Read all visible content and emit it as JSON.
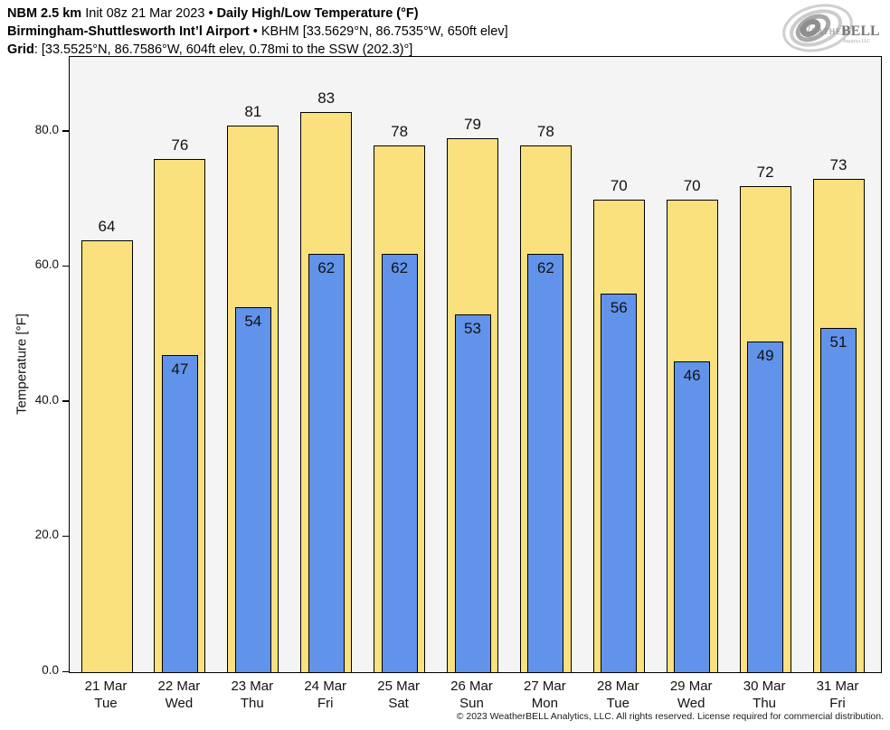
{
  "header": {
    "line1": {
      "bold1": "NBM 2.5 km",
      "regular1": " Init 08z 21 Mar 2023 • ",
      "bold2": "Daily High/Low Temperature (°F)"
    },
    "line2": {
      "bold": "Birmingham-Shuttlesworth Int’l Airport",
      "regular": " • KBHM [33.5629°N, 86.7535°W, 650ft elev]"
    },
    "line3": {
      "bold": "Grid",
      "regular": ": [33.5525°N, 86.7586°W, 604ft elev, 0.78mi to the SSW (202.3)°]"
    }
  },
  "logo": {
    "brand_weather": "Weather",
    "brand_bell": "BELL",
    "subtitle": "Analytics LLC"
  },
  "chart_data": {
    "type": "bar",
    "title": "Daily High/Low Temperature (°F)",
    "ylabel": "Temperature [°F]",
    "ylim": [
      0,
      91.1
    ],
    "grid": false,
    "legend": "none",
    "yticks": [
      {
        "value": 0,
        "label": "0.0"
      },
      {
        "value": 20,
        "label": "20.0"
      },
      {
        "value": 40,
        "label": "40.0"
      },
      {
        "value": 60,
        "label": "60.0"
      },
      {
        "value": 80,
        "label": "80.0"
      }
    ],
    "series": [
      {
        "name": "Daily High",
        "color": "#FBE07E"
      },
      {
        "name": "Daily Low",
        "color": "#6193EA"
      }
    ],
    "days": [
      {
        "date": "21 Mar",
        "dow": "Tue",
        "high": 64,
        "low": null
      },
      {
        "date": "22 Mar",
        "dow": "Wed",
        "high": 76,
        "low": 47
      },
      {
        "date": "23 Mar",
        "dow": "Thu",
        "high": 81,
        "low": 54
      },
      {
        "date": "24 Mar",
        "dow": "Fri",
        "high": 83,
        "low": 62
      },
      {
        "date": "25 Mar",
        "dow": "Sat",
        "high": 78,
        "low": 62
      },
      {
        "date": "26 Mar",
        "dow": "Sun",
        "high": 79,
        "low": 53
      },
      {
        "date": "27 Mar",
        "dow": "Mon",
        "high": 78,
        "low": 62
      },
      {
        "date": "28 Mar",
        "dow": "Tue",
        "high": 70,
        "low": 56
      },
      {
        "date": "29 Mar",
        "dow": "Wed",
        "high": 70,
        "low": 46
      },
      {
        "date": "30 Mar",
        "dow": "Thu",
        "high": 72,
        "low": 49
      },
      {
        "date": "31 Mar",
        "dow": "Fri",
        "high": 73,
        "low": 51
      }
    ]
  },
  "colors": {
    "plot_bg": "#F4F4F4",
    "bar_border": "#000000",
    "high": "#FBE07E",
    "low": "#6193EA"
  },
  "footer": "© 2023 WeatherBELL Analytics, LLC. All rights reserved. License required for commercial distribution."
}
